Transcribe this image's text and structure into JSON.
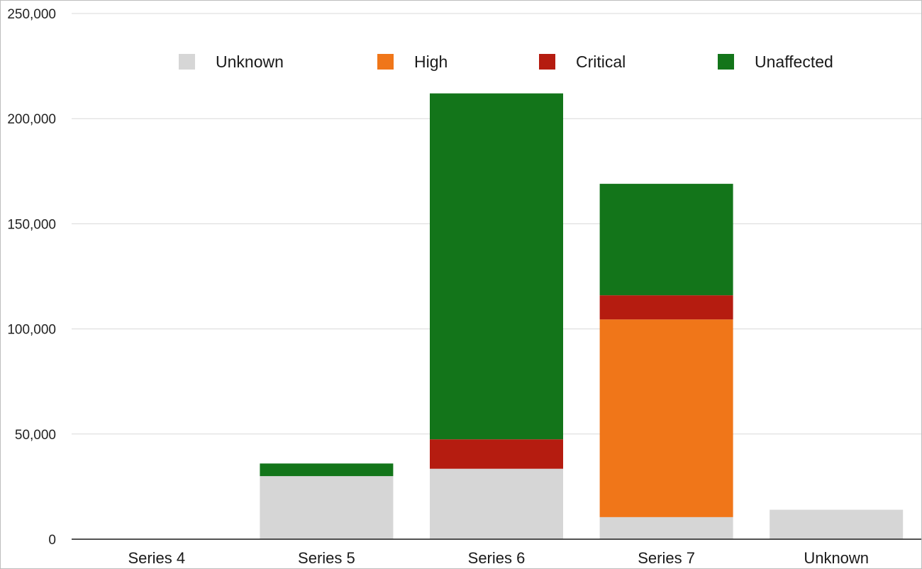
{
  "chart_data": {
    "type": "bar",
    "stacked": true,
    "title": "",
    "xlabel": "",
    "ylabel": "",
    "categories": [
      "Series 4",
      "Series 5",
      "Series 6",
      "Series 7",
      "Unknown"
    ],
    "series": [
      {
        "name": "Unknown",
        "color": "#d6d6d6",
        "values": [
          0,
          30000,
          33500,
          10500,
          14000
        ]
      },
      {
        "name": "High",
        "color": "#f07619",
        "values": [
          0,
          0,
          0,
          94000,
          0
        ]
      },
      {
        "name": "Critical",
        "color": "#b51c10",
        "values": [
          0,
          0,
          14000,
          11500,
          0
        ]
      },
      {
        "name": "Unaffected",
        "color": "#13751a",
        "values": [
          0,
          6000,
          164500,
          53000,
          0
        ]
      }
    ],
    "ylim": [
      0,
      250000
    ],
    "yticks": [
      0,
      50000,
      100000,
      150000,
      200000,
      250000
    ],
    "ytick_labels": [
      "0",
      "50,000",
      "100,000",
      "150,000",
      "200,000",
      "250,000"
    ],
    "grid": true,
    "legend": "top-inside"
  }
}
